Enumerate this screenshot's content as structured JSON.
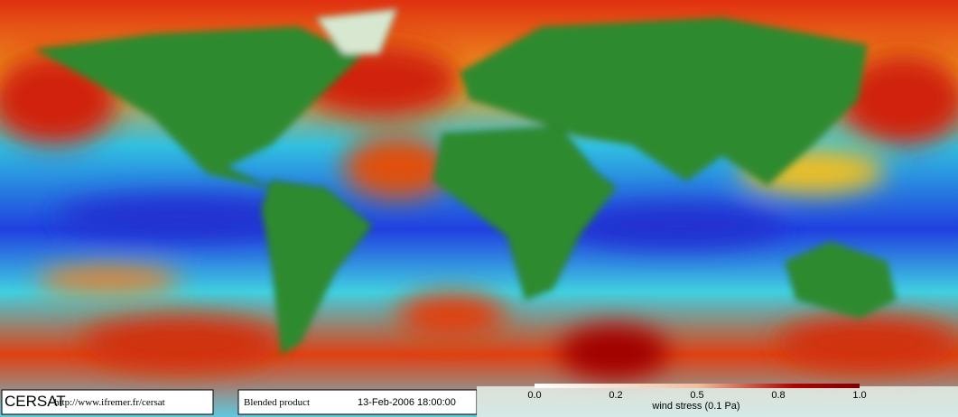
{
  "footer": {
    "logo": "CERSAT",
    "url": "http://www.ifremer.fr/cersat",
    "product": "Blended product",
    "date": "13-Feb-2006 18:00:00"
  },
  "colorbar": {
    "ticks": [
      "0.0",
      "0.2",
      "0.5",
      "0.8",
      "1.0"
    ],
    "label": "wind stress (0.1 Pa)"
  }
}
